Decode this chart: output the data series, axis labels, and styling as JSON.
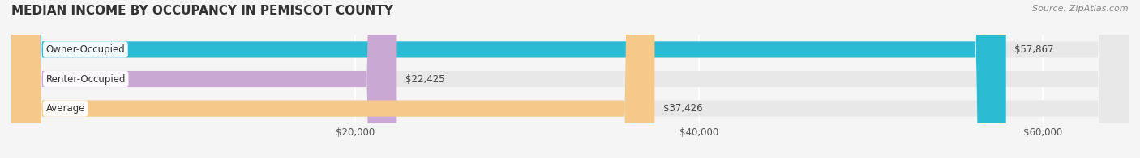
{
  "title": "MEDIAN INCOME BY OCCUPANCY IN PEMISCOT COUNTY",
  "source": "Source: ZipAtlas.com",
  "categories": [
    "Owner-Occupied",
    "Renter-Occupied",
    "Average"
  ],
  "values": [
    57867,
    22425,
    37426
  ],
  "bar_colors": [
    "#2bbcd4",
    "#c9a8d4",
    "#f5c98a"
  ],
  "label_colors": [
    "#2bbcd4",
    "#c9a8d4",
    "#f5c98a"
  ],
  "value_labels": [
    "$57,867",
    "$22,425",
    "$37,426"
  ],
  "xlim": [
    0,
    65000
  ],
  "xticks": [
    0,
    20000,
    40000,
    60000
  ],
  "xticklabels": [
    "",
    "$20,000",
    "$40,000",
    "$60,000"
  ],
  "background_color": "#f5f5f5",
  "bar_background_color": "#e8e8e8",
  "title_fontsize": 11,
  "source_fontsize": 8,
  "bar_height": 0.55,
  "figsize": [
    14.06,
    1.96
  ],
  "dpi": 100
}
